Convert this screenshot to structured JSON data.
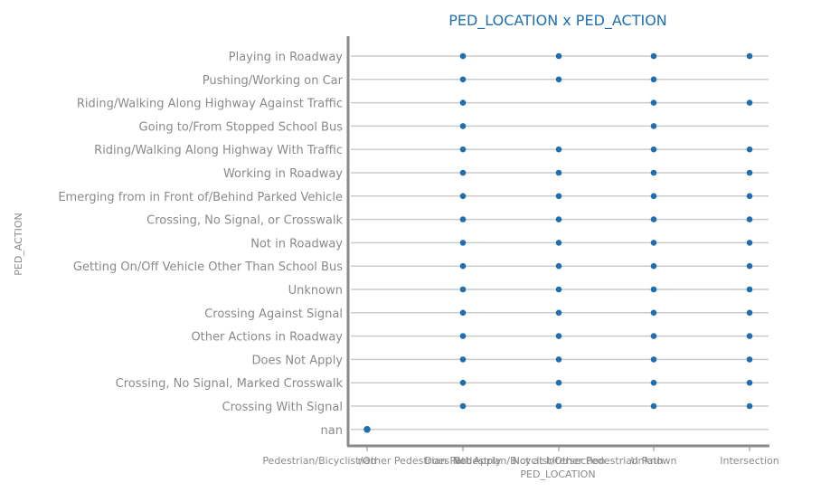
{
  "chart_data": {
    "type": "scatter",
    "title": "PED_LOCATION x PED_ACTION",
    "xlabel": "PED_LOCATION",
    "ylabel": "PED_ACTION",
    "x_categories": [
      "Pedestrian/Bicyclist/Other Pedestrian Path",
      "nan",
      "Does Not Apply",
      "Pedestrian/Bicyclist/Other Pedestrian Path",
      "Not at Intersection",
      "Unknown",
      "Intersection"
    ],
    "x_tick_labels": [
      "Pedestrian/Bicyclist/Other Pedestrian Path",
      "nan",
      "Does Not Apply",
      "Pedestrian/Bicyclist/Other Pedestrian Path",
      "Not at Intersection",
      "Unknown",
      "Intersection"
    ],
    "y_categories": [
      "nan",
      "Crossing With Signal",
      "Crossing, No Signal, Marked Crosswalk",
      "Does Not Apply",
      "Other Actions in Roadway",
      "Crossing Against Signal",
      "Unknown",
      "Getting On/Off Vehicle Other Than School Bus",
      "Not in Roadway",
      "Crossing, No Signal, or Crosswalk",
      "Emerging from in Front of/Behind Parked Vehicle",
      "Working in Roadway",
      "Riding/Walking Along Highway With Traffic",
      "Going to/From Stopped School Bus",
      "Riding/Walking Along Highway Against Traffic",
      "Pushing/Working on Car",
      "Playing in Roadway"
    ],
    "point_columns": [
      0,
      1,
      2,
      3,
      4
    ],
    "points": [
      {
        "x": 0,
        "y": "nan"
      },
      {
        "x": 1,
        "y": "Crossing With Signal"
      },
      {
        "x": 2,
        "y": "Crossing With Signal"
      },
      {
        "x": 3,
        "y": "Crossing With Signal"
      },
      {
        "x": 4,
        "y": "Crossing With Signal"
      },
      {
        "x": 1,
        "y": "Crossing, No Signal, Marked Crosswalk"
      },
      {
        "x": 2,
        "y": "Crossing, No Signal, Marked Crosswalk"
      },
      {
        "x": 3,
        "y": "Crossing, No Signal, Marked Crosswalk"
      },
      {
        "x": 4,
        "y": "Crossing, No Signal, Marked Crosswalk"
      },
      {
        "x": 1,
        "y": "Does Not Apply"
      },
      {
        "x": 2,
        "y": "Does Not Apply"
      },
      {
        "x": 3,
        "y": "Does Not Apply"
      },
      {
        "x": 4,
        "y": "Does Not Apply"
      },
      {
        "x": 1,
        "y": "Other Actions in Roadway"
      },
      {
        "x": 2,
        "y": "Other Actions in Roadway"
      },
      {
        "x": 3,
        "y": "Other Actions in Roadway"
      },
      {
        "x": 4,
        "y": "Other Actions in Roadway"
      },
      {
        "x": 1,
        "y": "Crossing Against Signal"
      },
      {
        "x": 2,
        "y": "Crossing Against Signal"
      },
      {
        "x": 3,
        "y": "Crossing Against Signal"
      },
      {
        "x": 4,
        "y": "Crossing Against Signal"
      },
      {
        "x": 1,
        "y": "Unknown"
      },
      {
        "x": 2,
        "y": "Unknown"
      },
      {
        "x": 3,
        "y": "Unknown"
      },
      {
        "x": 4,
        "y": "Unknown"
      },
      {
        "x": 1,
        "y": "Getting On/Off Vehicle Other Than School Bus"
      },
      {
        "x": 2,
        "y": "Getting On/Off Vehicle Other Than School Bus"
      },
      {
        "x": 3,
        "y": "Getting On/Off Vehicle Other Than School Bus"
      },
      {
        "x": 4,
        "y": "Getting On/Off Vehicle Other Than School Bus"
      },
      {
        "x": 1,
        "y": "Not in Roadway"
      },
      {
        "x": 2,
        "y": "Not in Roadway"
      },
      {
        "x": 3,
        "y": "Not in Roadway"
      },
      {
        "x": 4,
        "y": "Not in Roadway"
      },
      {
        "x": 1,
        "y": "Crossing, No Signal, or Crosswalk"
      },
      {
        "x": 2,
        "y": "Crossing, No Signal, or Crosswalk"
      },
      {
        "x": 3,
        "y": "Crossing, No Signal, or Crosswalk"
      },
      {
        "x": 4,
        "y": "Crossing, No Signal, or Crosswalk"
      },
      {
        "x": 1,
        "y": "Emerging from in Front of/Behind Parked Vehicle"
      },
      {
        "x": 2,
        "y": "Emerging from in Front of/Behind Parked Vehicle"
      },
      {
        "x": 3,
        "y": "Emerging from in Front of/Behind Parked Vehicle"
      },
      {
        "x": 4,
        "y": "Emerging from in Front of/Behind Parked Vehicle"
      },
      {
        "x": 1,
        "y": "Working in Roadway"
      },
      {
        "x": 2,
        "y": "Working in Roadway"
      },
      {
        "x": 3,
        "y": "Working in Roadway"
      },
      {
        "x": 4,
        "y": "Working in Roadway"
      },
      {
        "x": 1,
        "y": "Riding/Walking Along Highway With Traffic"
      },
      {
        "x": 2,
        "y": "Riding/Walking Along Highway With Traffic"
      },
      {
        "x": 3,
        "y": "Riding/Walking Along Highway With Traffic"
      },
      {
        "x": 4,
        "y": "Riding/Walking Along Highway With Traffic"
      },
      {
        "x": 1,
        "y": "Going to/From Stopped School Bus"
      },
      {
        "x": 3,
        "y": "Going to/From Stopped School Bus"
      },
      {
        "x": 1,
        "y": "Riding/Walking Along Highway Against Traffic"
      },
      {
        "x": 3,
        "y": "Riding/Walking Along Highway Against Traffic"
      },
      {
        "x": 4,
        "y": "Riding/Walking Along Highway Against Traffic"
      },
      {
        "x": 1,
        "y": "Pushing/Working on Car"
      },
      {
        "x": 2,
        "y": "Pushing/Working on Car"
      },
      {
        "x": 3,
        "y": "Pushing/Working on Car"
      },
      {
        "x": 1,
        "y": "Playing in Roadway"
      },
      {
        "x": 2,
        "y": "Playing in Roadway"
      },
      {
        "x": 3,
        "y": "Playing in Roadway"
      },
      {
        "x": 4,
        "y": "Playing in Roadway"
      }
    ],
    "grid": "horizontal",
    "colors": {
      "point": "#1f6fb0",
      "title": "#1f6fb0",
      "text": "#8a8a8a",
      "axis": "#8a8a8a",
      "grid": "#cccccc"
    }
  }
}
